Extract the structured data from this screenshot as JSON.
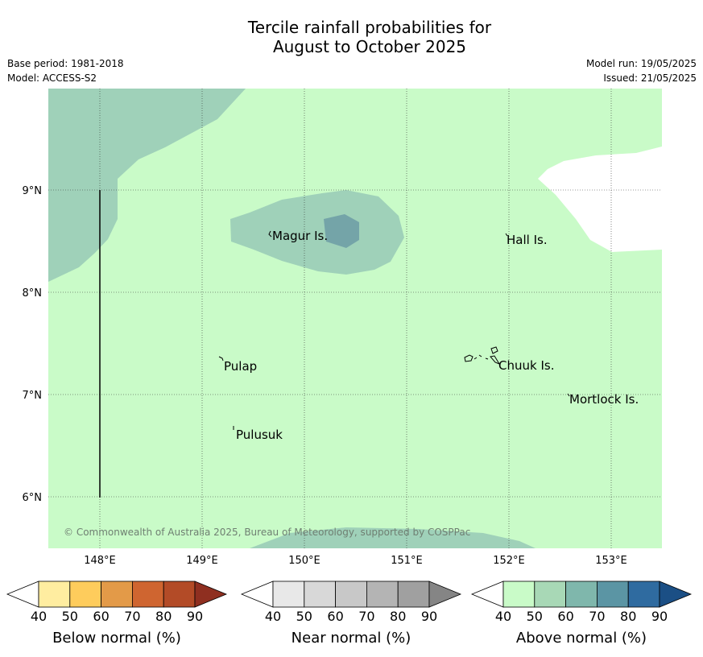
{
  "title_line1": "Tercile rainfall probabilities for",
  "title_line2": "August to October 2025",
  "base_period": "Base period: 1981-2018",
  "model": "Model: ACCESS-S2",
  "model_run": "Model run: 19/05/2025",
  "issued": "Issued: 21/05/2025",
  "copyright": "© Commonwealth of Australia 2025, Bureau of Meteorology, supported by COSPPac",
  "map": {
    "lon_labels": [
      "148°E",
      "149°E",
      "150°E",
      "151°E",
      "152°E",
      "153°E"
    ],
    "lat_labels": [
      "9°N",
      "8°N",
      "7°N",
      "6°N"
    ],
    "places": [
      {
        "name": "Magur Is."
      },
      {
        "name": "Hall Is."
      },
      {
        "name": "Pulap"
      },
      {
        "name": "Chuuk Is."
      },
      {
        "name": "Mortlock Is."
      },
      {
        "name": "Pulusuk"
      }
    ],
    "colors": {
      "ocean_above_40_50": "#c9fbc8",
      "above_50_60": "#9fd1b9",
      "above_60_70": "#74a4a8",
      "no_data": "#ffffff"
    }
  },
  "legends": [
    {
      "label": "Below normal (%)",
      "ticks": [
        "40",
        "50",
        "60",
        "70",
        "80",
        "90"
      ],
      "colors": [
        "#ffffff",
        "#ffeda0",
        "#fecc5c",
        "#e39a48",
        "#cf6530",
        "#b34b27",
        "#8f2f20"
      ]
    },
    {
      "label": "Near normal (%)",
      "ticks": [
        "40",
        "50",
        "60",
        "70",
        "80",
        "90"
      ],
      "colors": [
        "#ffffff",
        "#e8e8e8",
        "#d8d8d8",
        "#c8c8c8",
        "#b4b4b4",
        "#a0a0a0",
        "#858585"
      ]
    },
    {
      "label": "Above normal (%)",
      "ticks": [
        "40",
        "50",
        "60",
        "70",
        "80",
        "90"
      ],
      "colors": [
        "#ffffff",
        "#c9fbc8",
        "#a8d8b6",
        "#7fb7ac",
        "#5b95a4",
        "#2f6ba0",
        "#1b4f85"
      ]
    }
  ]
}
